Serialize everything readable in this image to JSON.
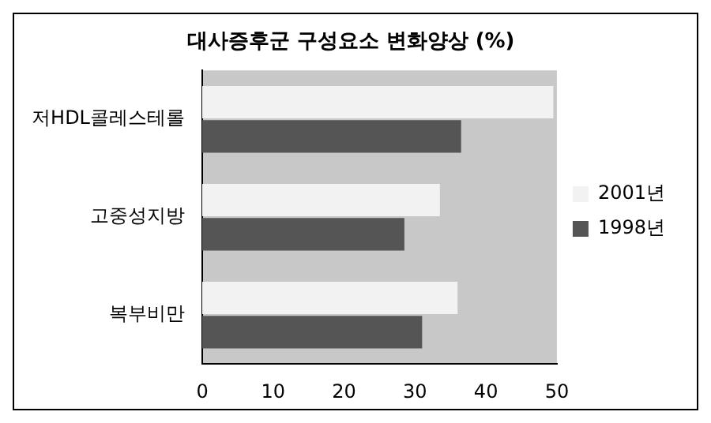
{
  "chart_data": {
    "type": "bar",
    "orientation": "horizontal",
    "title": "대사증후군 구성요소 변화양상 (%)",
    "categories": [
      "저HDL콜레스테롤",
      "고중성지방",
      "복부비만"
    ],
    "series": [
      {
        "name": "2001년",
        "color": "#f2f2f2",
        "values": [
          49.5,
          33.5,
          36
        ]
      },
      {
        "name": "1998년",
        "color": "#555555",
        "values": [
          36.5,
          28.5,
          31
        ]
      }
    ],
    "xlim": [
      0,
      50
    ],
    "xticks": [
      0,
      10,
      20,
      30,
      40,
      50
    ],
    "grid": false,
    "legend": "right"
  }
}
